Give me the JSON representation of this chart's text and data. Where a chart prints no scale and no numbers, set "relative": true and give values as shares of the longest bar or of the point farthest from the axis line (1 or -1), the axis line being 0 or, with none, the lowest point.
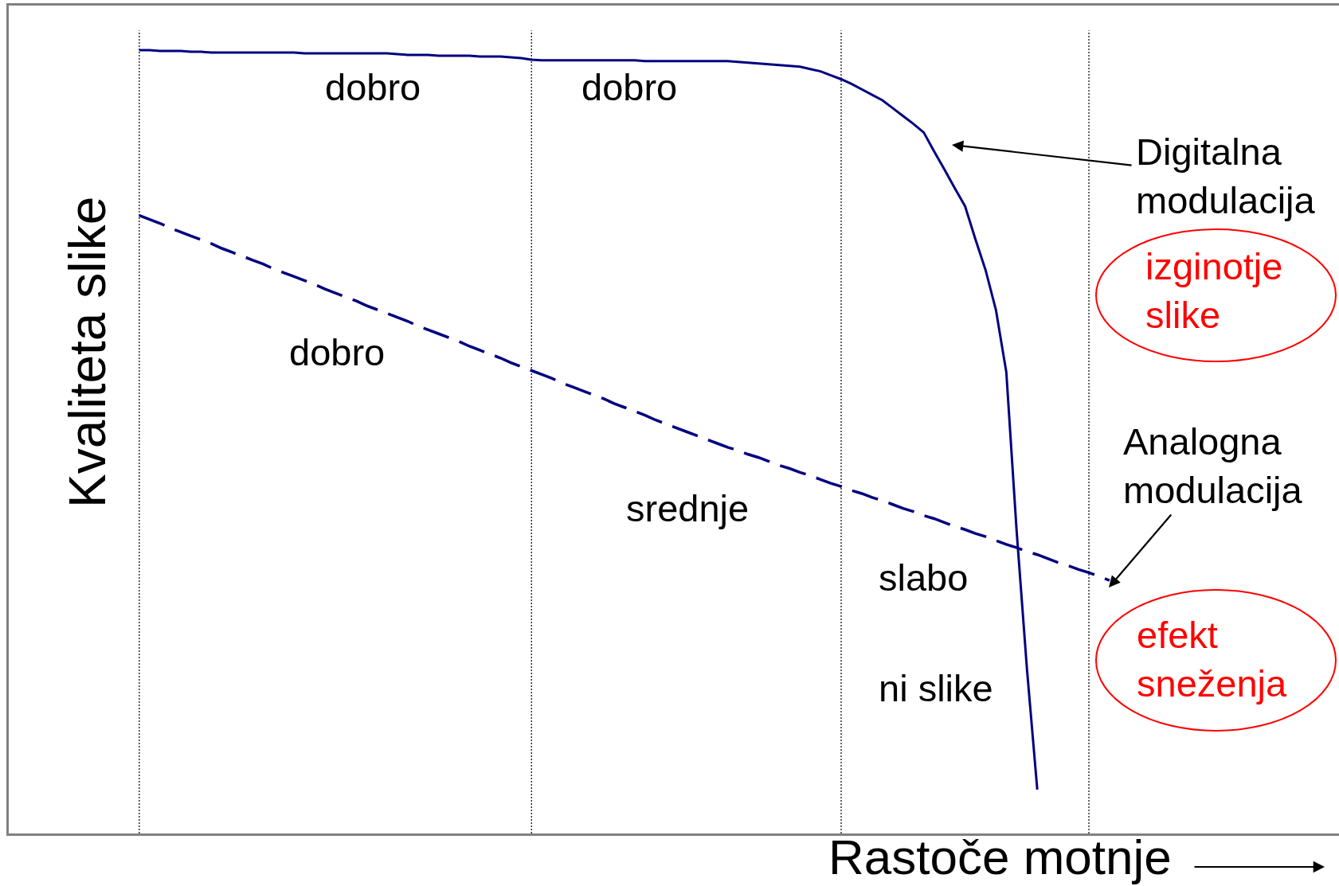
{
  "chart_data": {
    "type": "line",
    "relative": true,
    "grid": "x",
    "xlabel": "Rastoče motnje",
    "ylabel": "Kvaliteta slike",
    "categories": [
      null,
      null,
      null,
      null,
      null,
      null,
      null,
      null,
      null,
      null,
      null,
      null,
      null,
      null,
      null,
      null,
      null,
      null,
      null,
      null,
      null,
      null,
      null,
      null,
      null,
      null,
      null,
      null,
      null,
      null,
      null,
      null,
      null,
      null,
      null,
      null,
      null,
      null,
      null,
      null,
      null,
      null,
      null,
      null,
      null,
      null,
      null,
      null,
      null,
      null,
      null,
      null,
      null,
      null,
      null,
      null,
      null,
      null,
      null,
      null,
      null,
      null,
      null,
      null,
      null,
      null,
      null,
      null,
      null,
      null,
      null,
      null,
      null,
      null,
      null,
      null,
      null,
      null,
      null,
      null,
      null,
      null,
      null,
      null,
      null,
      null,
      null,
      null,
      null,
      null,
      null,
      null,
      null,
      null,
      null
    ],
    "series": [
      {
        "name": "Digitalna modulacija",
        "color": "#000080",
        "line_style": "solid",
        "values": [
          1.0,
          1.0,
          0.999,
          0.999,
          0.999,
          0.998,
          0.998,
          0.997,
          0.997,
          0.997,
          0.997,
          0.997,
          0.997,
          0.997,
          0.997,
          0.997,
          0.996,
          0.996,
          0.996,
          0.996,
          0.996,
          0.996,
          0.996,
          0.996,
          0.996,
          0.995,
          0.994,
          0.994,
          0.994,
          0.993,
          0.993,
          0.993,
          0.993,
          0.992,
          0.992,
          0.992,
          0.991,
          0.99,
          0.988,
          0.987,
          0.987,
          0.987,
          0.987,
          0.987,
          0.987,
          0.987,
          0.987,
          0.987,
          0.987,
          0.986,
          0.986,
          0.986,
          0.986,
          0.986,
          0.986,
          0.986,
          0.986,
          0.986,
          0.985,
          0.984,
          0.983,
          0.982,
          0.981,
          0.98,
          0.979,
          0.976,
          0.973,
          0.968,
          0.963,
          0.957,
          0.95,
          0.943,
          0.936,
          0.926,
          0.916,
          0.906,
          0.895,
          0.871,
          0.848,
          0.824,
          0.801,
          0.759,
          0.719,
          0.668,
          0.589,
          0.386,
          0.21,
          0.056,
          null,
          null,
          null,
          null,
          null,
          null,
          null
        ]
      },
      {
        "name": "Analogna modulacija",
        "color": "#000080",
        "line_style": "dashed",
        "values": [
          0.789,
          0.784,
          0.779,
          0.773,
          0.768,
          0.763,
          0.758,
          0.753,
          0.747,
          0.742,
          0.737,
          0.732,
          0.727,
          0.721,
          0.716,
          0.711,
          0.706,
          0.701,
          0.695,
          0.69,
          0.685,
          0.68,
          0.674,
          0.669,
          0.664,
          0.659,
          0.654,
          0.648,
          0.643,
          0.638,
          0.633,
          0.628,
          0.622,
          0.617,
          0.612,
          0.607,
          0.601,
          0.596,
          0.591,
          0.586,
          0.581,
          0.575,
          0.57,
          0.565,
          0.56,
          0.555,
          0.549,
          0.544,
          0.539,
          0.534,
          0.528,
          0.523,
          0.518,
          0.513,
          0.508,
          0.503,
          0.498,
          0.493,
          0.489,
          0.484,
          0.48,
          0.475,
          0.47,
          0.466,
          0.461,
          0.457,
          0.452,
          0.447,
          0.443,
          0.438,
          0.434,
          0.429,
          0.425,
          0.42,
          0.415,
          0.411,
          0.406,
          0.402,
          0.397,
          0.392,
          0.388,
          0.383,
          0.379,
          0.374,
          0.369,
          0.365,
          0.36,
          0.356,
          0.351,
          0.346,
          0.342,
          0.337,
          0.333,
          0.328,
          0.323
        ]
      }
    ],
    "annotations": [
      "dobro",
      "dobro",
      "dobro",
      "srednje",
      "slabo",
      "ni slike",
      "izginotje slike",
      "efekt sneženja"
    ]
  }
}
